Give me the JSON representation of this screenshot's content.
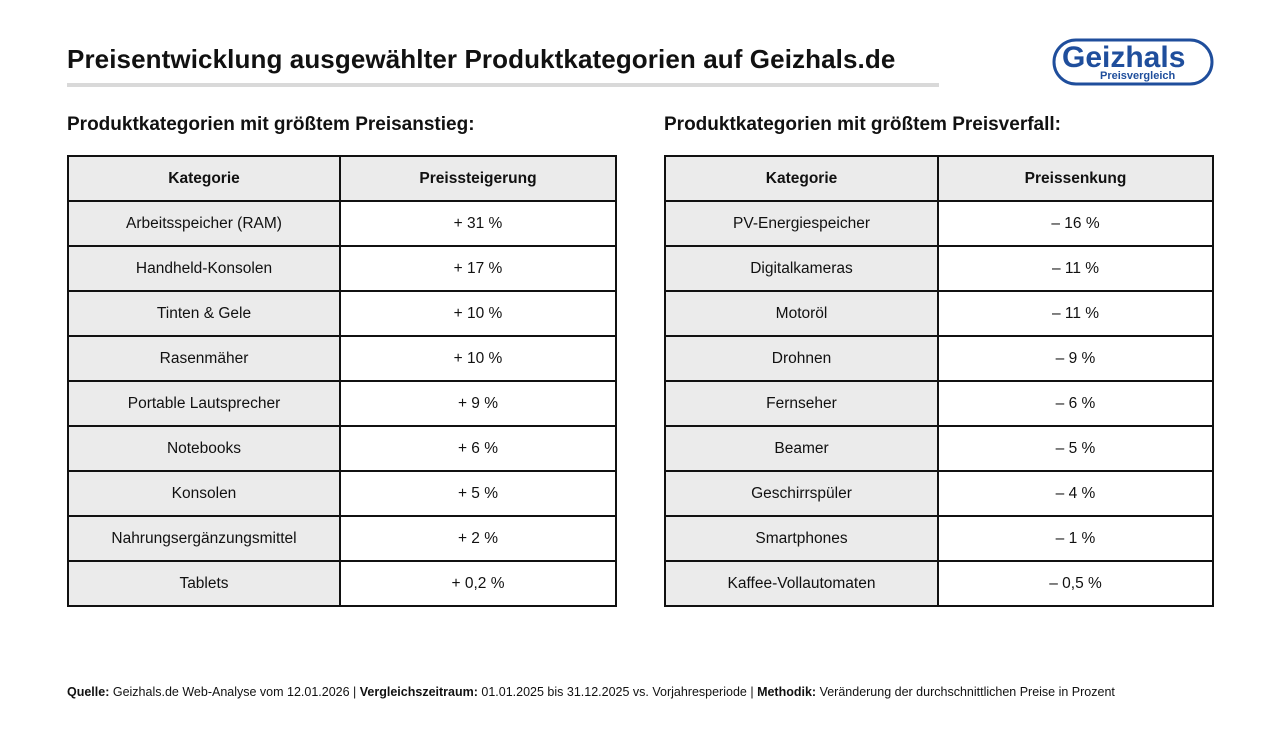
{
  "title": "Preisentwicklung ausgewählter Produktkategorien auf Geizhals.de",
  "logo": {
    "name": "Geizhals",
    "tagline": "Preisvergleich"
  },
  "colors": {
    "brand": "#1f4e9c",
    "header_bg": "#ebebeb",
    "border": "#111111",
    "underline": "#d9d9d9"
  },
  "footer": {
    "source_label": "Quelle:",
    "source_text": "Geizhals.de Web-Analyse vom 12.01.2026 |",
    "period_label": "Vergleichszeitraum:",
    "period_text": "01.01.2025 bis 31.12.2025 vs. Vorjahresperiode |",
    "method_label": "Methodik:",
    "method_text": "Veränderung der durchschnittlichen Preise in Prozent"
  },
  "chart_data": [
    {
      "type": "table",
      "heading": "Produktkategorien mit größtem Preisanstieg:",
      "columns": [
        "Kategorie",
        "Preissteigerung"
      ],
      "rows": [
        [
          "Arbeitsspeicher (RAM)",
          "+ 31 %"
        ],
        [
          "Handheld-Konsolen",
          "+ 17 %"
        ],
        [
          "Tinten & Gele",
          "+ 10 %"
        ],
        [
          "Rasenmäher",
          "+ 10 %"
        ],
        [
          "Portable Lautsprecher",
          "+ 9 %"
        ],
        [
          "Notebooks",
          "+ 6 %"
        ],
        [
          "Konsolen",
          "+ 5 %"
        ],
        [
          "Nahrungsergänzungsmittel",
          "+ 2 %"
        ],
        [
          "Tablets",
          "+ 0,2 %"
        ]
      ]
    },
    {
      "type": "table",
      "heading": "Produktkategorien mit größtem Preisverfall:",
      "columns": [
        "Kategorie",
        "Preissenkung"
      ],
      "rows": [
        [
          "PV-Energiespeicher",
          "–  16 %"
        ],
        [
          "Digitalkameras",
          "–  11 %"
        ],
        [
          "Motoröl",
          "–  11 %"
        ],
        [
          "Drohnen",
          "–  9 %"
        ],
        [
          "Fernseher",
          "–  6 %"
        ],
        [
          "Beamer",
          "–  5 %"
        ],
        [
          "Geschirrspüler",
          "–  4 %"
        ],
        [
          "Smartphones",
          "– 1 %"
        ],
        [
          "Kaffee-Vollautomaten",
          "– 0,5 %"
        ]
      ]
    }
  ]
}
